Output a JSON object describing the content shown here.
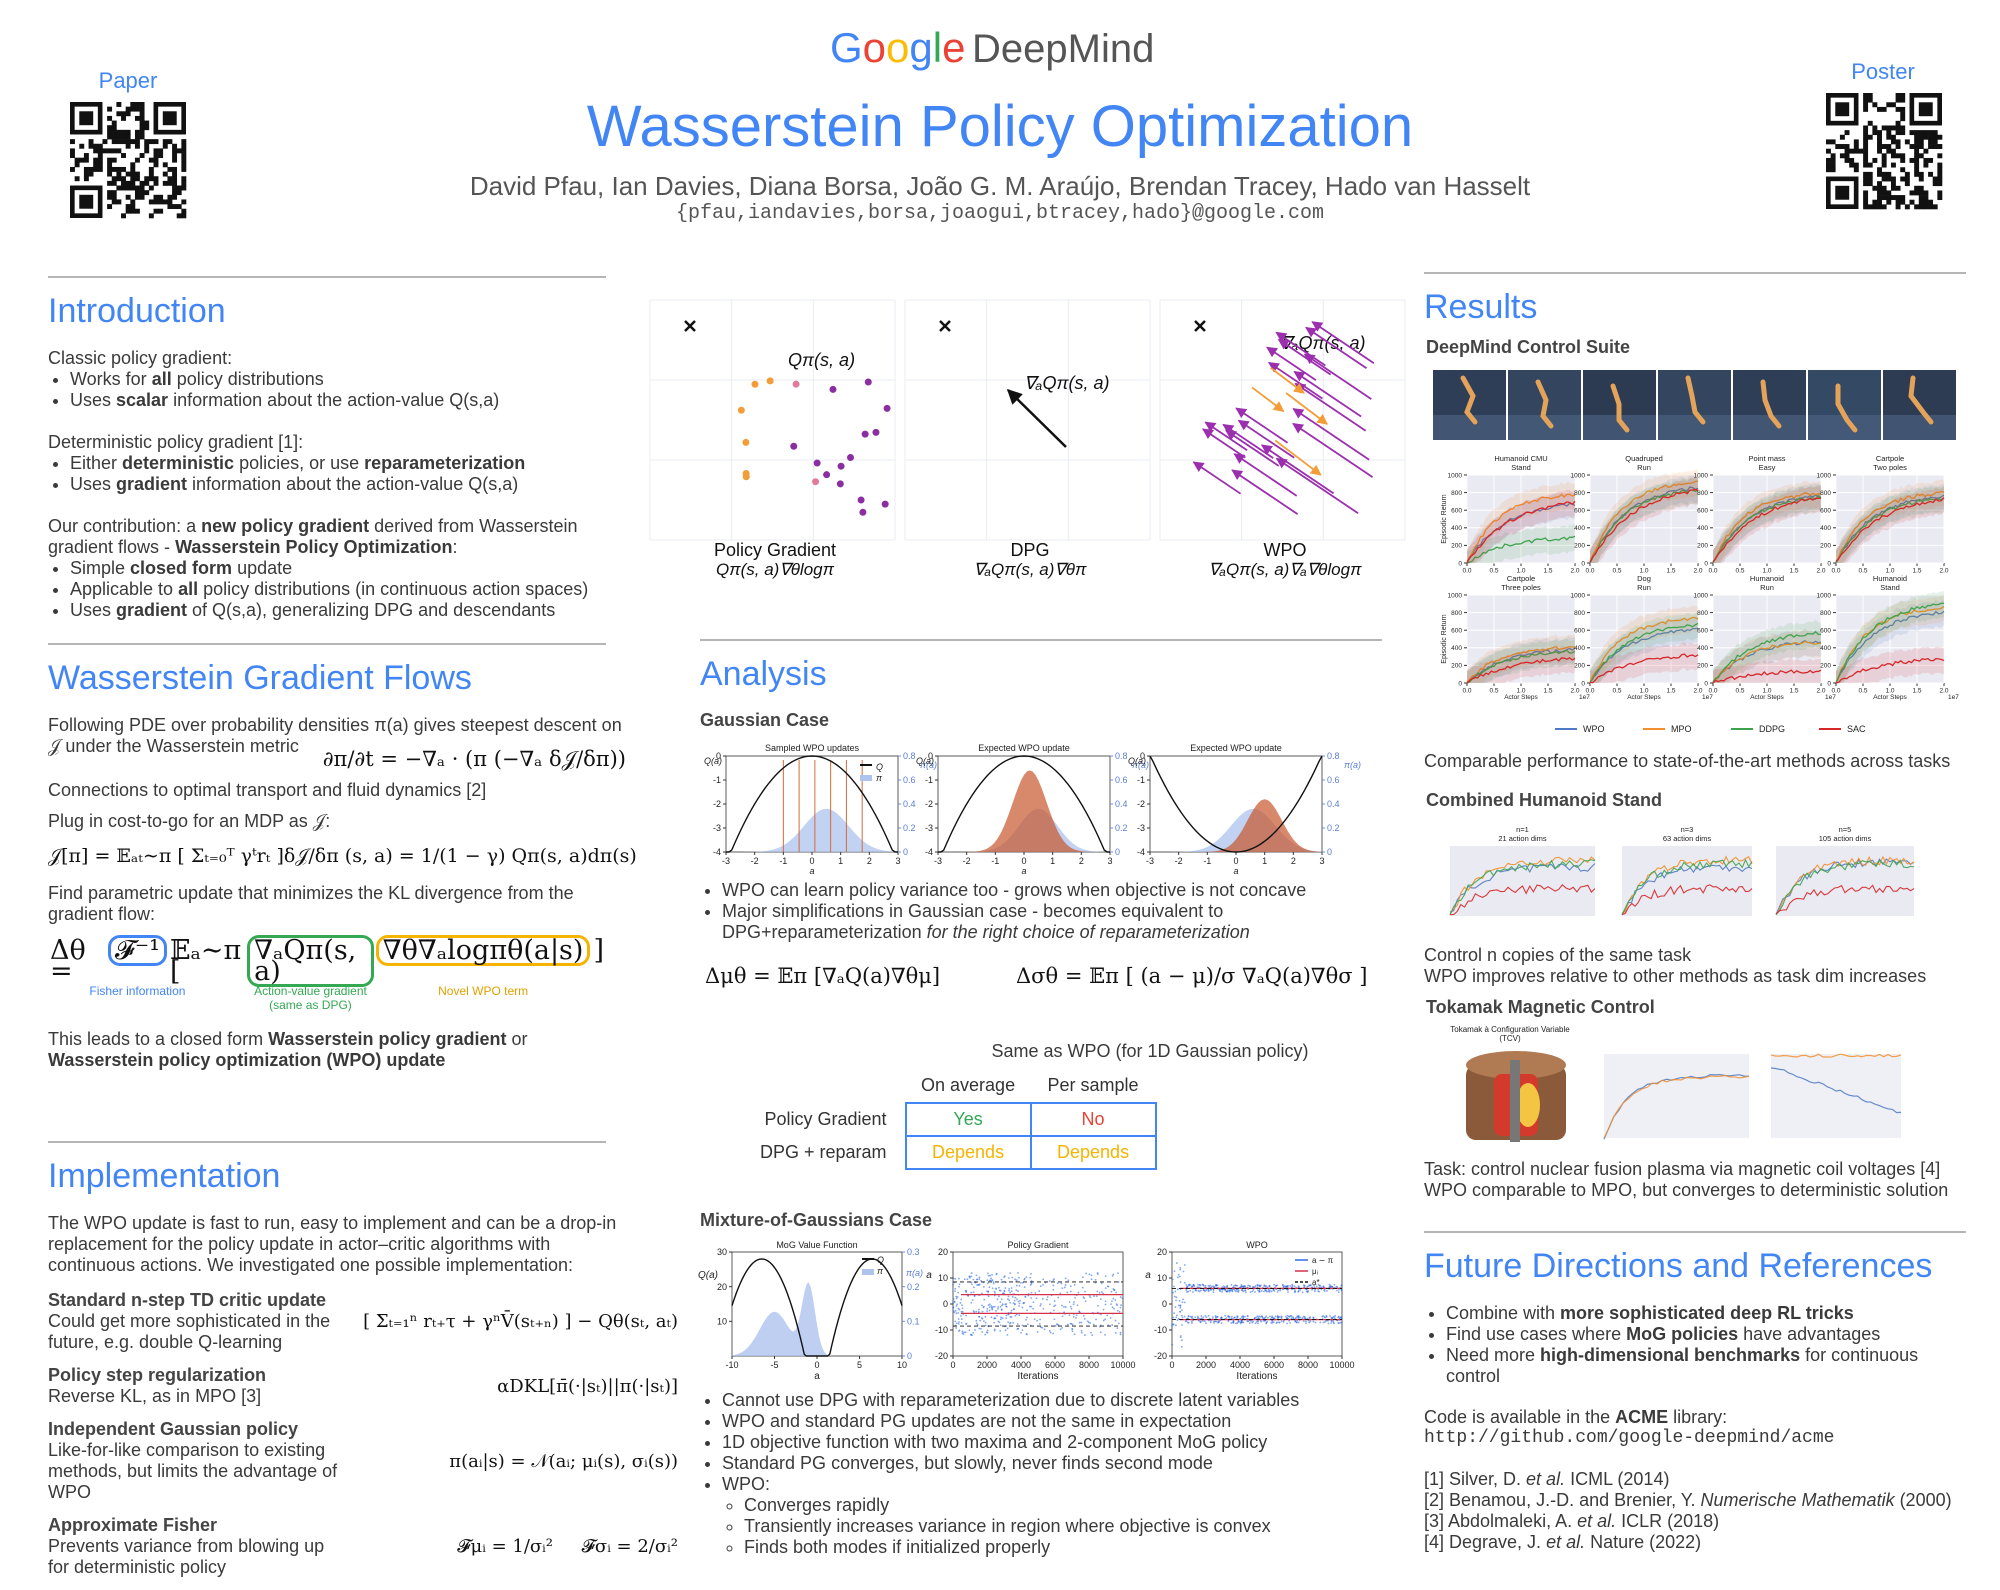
{
  "header": {
    "google": "Google",
    "deepmind": "DeepMind",
    "title": "Wasserstein Policy Optimization",
    "authors": "David Pfau, Ian Davies, Diana Borsa, João G. M. Araújo, Brendan Tracey, Hado van Hasselt",
    "emails": "{pfau,iandavies,borsa,joaogui,btracey,hado}@google.com",
    "paper": "Paper",
    "poster": "Poster"
  },
  "introduction": {
    "heading": "Introduction",
    "blocks": [
      {
        "lead": "Classic policy gradient:",
        "items": [
          [
            "Works for ",
            "all",
            " policy distributions"
          ],
          [
            "Uses ",
            "scalar",
            " information about the action-value Q(s,a)"
          ]
        ]
      },
      {
        "lead": "Deterministic policy gradient [1]:",
        "items": [
          [
            "Either ",
            "deterministic",
            " policies, or use ",
            "reparameterization"
          ],
          [
            "Uses ",
            "gradient",
            " information about the action-value Q(s,a)"
          ]
        ]
      },
      {
        "lead": [
          "Our contribution: a ",
          "new policy gradient",
          " derived from Wasserstein gradient flows - ",
          "Wasserstein Policy Optimization",
          ":"
        ],
        "items": [
          [
            "Simple ",
            "closed form",
            " update"
          ],
          [
            "Applicable to ",
            "all",
            " policy distributions (in continuous action spaces)"
          ],
          [
            "Uses ",
            "gradient",
            " of Q(s,a), generalizing DPG and descendants"
          ]
        ]
      }
    ]
  },
  "gradient_flows": {
    "heading": "Wasserstein Gradient Flows",
    "pde_text": "Following PDE over probability densities π(a) gives steepest descent on 𝒥 under the Wasserstein metric",
    "pde": "∂π/∂t = −∇ₐ · (π (−∇ₐ δ𝒥/δπ))",
    "connections": "Connections to optimal transport and fluid dynamics [2]",
    "plug": "Plug in cost-to-go for an MDP as 𝒥:",
    "eq_cost": "𝒥[π] = 𝔼ₐₜ∼π [ Σₜ₌₀ᵀ γᵗrₜ ]",
    "eq_deriv": "δ𝒥/δπ (s, a) = 1/(1 − γ) Qπ(s, a)dπ(s)",
    "kl_text": "Find parametric update that minimizes the KL divergence from the gradient flow:",
    "update": {
      "lhs": "Δθ =",
      "fisher": "𝓕⁻¹",
      "expect": "𝔼ₐ∼π [",
      "qgrad": "∇ₐQπ(s, a)",
      "novel": "∇θ∇ₐlogπθ(a|s)",
      "close": "]",
      "fisher_caption": "Fisher information",
      "qgrad_caption": [
        "Action-value gradient",
        "(same as DPG)"
      ],
      "novel_caption": "Novel WPO term"
    },
    "closing": [
      "This leads to a closed form ",
      "Wasserstein policy gradient",
      " or ",
      "Wasserstein policy optimization (WPO) update"
    ]
  },
  "implementation": {
    "heading": "Implementation",
    "text": "The WPO update is fast to run, easy to implement and can be a drop-in replacement for the policy update in actor–critic algorithms with continuous actions. We investigated one possible implementation:",
    "items": [
      {
        "title": "Standard n-step TD critic update",
        "desc": "Could get more sophisticated in the future, e.g. double Q-learning",
        "eq": "[ Σₜ₌₁ⁿ rₜ₊τ + γⁿV̄(sₜ₊ₙ) ] − Qθ(sₜ, aₜ)"
      },
      {
        "title": "Policy step regularization",
        "desc": "Reverse KL, as in MPO [3]",
        "eq": "αDKL[π̄(·|sₜ)||π(·|sₜ)]"
      },
      {
        "title": "Independent Gaussian policy",
        "desc": "Like-for-like comparison to existing methods, but limits the advantage of WPO",
        "eq": "π(aᵢ|s) = 𝒩(aᵢ; μᵢ(s), σᵢ(s))"
      },
      {
        "title": "Approximate Fisher",
        "desc": "Prevents variance from blowing up for deterministic policy",
        "eq": "𝓕μᵢ = 1/σᵢ²     𝓕σᵢ = 2/σᵢ²"
      }
    ]
  },
  "overview_figure": {
    "panels": [
      {
        "label": "Policy Gradient",
        "formula": "Qπ(s, a)∇θlogπ",
        "inner": "Qπ(s, a)"
      },
      {
        "label": "DPG",
        "formula": "∇ₐQπ(s, a)∇θπ",
        "inner": "∇ₐQπ(s, a)"
      },
      {
        "label": "WPO",
        "formula": "∇ₐQπ(s, a)∇ₐ∇θlogπ",
        "inner": "∇ₐQπ(s, a)"
      }
    ]
  },
  "analysis": {
    "heading": "Analysis",
    "gaussian": {
      "heading": "Gaussian Case",
      "titles": [
        "Sampled WPO updates",
        "Expected WPO update",
        "Expected WPO update"
      ],
      "xlabel": "a",
      "ylabel": "Q(a)",
      "y2label": "π(a)",
      "xticks": [
        -3,
        -2,
        -1,
        0,
        1,
        2,
        3
      ],
      "yticks": [
        -4,
        -3,
        -2,
        -1,
        0
      ],
      "y2ticks": [
        0.0,
        0.2,
        0.4,
        0.6,
        0.8
      ],
      "legend": [
        "Q",
        "π"
      ],
      "bullets": [
        [
          "WPO can learn policy variance too - grows when objective is not concave"
        ],
        [
          "Major simplifications in Gaussian case - becomes equivalent to DPG+reparameterization ",
          "for the right choice of reparameterization"
        ]
      ],
      "eq_mu": "Δμθ = 𝔼π [∇ₐQ(a)∇θμ]",
      "eq_sigma": "Δσθ = 𝔼π [ (a − μ)/σ ∇ₐQ(a)∇θσ ]"
    },
    "table": {
      "title": "Same as WPO (for 1D Gaussian policy)",
      "columns": [
        "On average",
        "Per sample"
      ],
      "rows": [
        {
          "label": "Policy Gradient",
          "cells": [
            "Yes",
            "No"
          ]
        },
        {
          "label": "DPG + reparam",
          "cells": [
            "Depends",
            "Depends"
          ]
        }
      ],
      "cell_colors": [
        [
          "#34a853",
          "#ea4335"
        ],
        [
          "#f4b400",
          "#f4b400"
        ]
      ]
    },
    "mog": {
      "heading": "Mixture-of-Gaussians Case",
      "plots": [
        {
          "title": "MoG Value Function",
          "xlabel": "a",
          "ylabel": "Q(a)",
          "y2label": "π(a)",
          "xticks": [
            -10,
            -5,
            0,
            5,
            10
          ],
          "ylim": [
            0,
            30
          ],
          "yticks": [
            10,
            20,
            30
          ],
          "y2ticks": [
            0.0,
            0.1,
            0.2,
            0.3
          ],
          "legend": [
            "Q",
            "π"
          ]
        },
        {
          "title": "Policy Gradient",
          "xlabel": "Iterations",
          "ylabel": "a",
          "xticks": [
            0,
            2000,
            4000,
            6000,
            8000,
            10000
          ],
          "yticks": [
            -20,
            -10,
            0,
            10,
            20
          ]
        },
        {
          "title": "WPO",
          "xlabel": "Iterations",
          "ylabel": "a",
          "xticks": [
            0,
            2000,
            4000,
            6000,
            8000,
            10000
          ],
          "yticks": [
            -20,
            -10,
            0,
            10,
            20
          ],
          "legend": [
            "a ∼ π",
            "μᵢ",
            "a*"
          ]
        }
      ],
      "bullets": [
        [
          "Cannot use DPG with reparameterization due to discrete latent variables"
        ],
        [
          "WPO and standard PG updates are not the same in expectation"
        ],
        [
          "1D objective function with two maxima and 2-component MoG policy"
        ],
        [
          "Standard PG converges, but slowly, never finds second mode"
        ],
        [
          "WPO:"
        ]
      ],
      "sub_bullets": [
        [
          "Converges rapidly"
        ],
        [
          "Transiently increases variance in region where objective is convex"
        ],
        [
          "Finds both modes if initialized properly"
        ]
      ]
    }
  },
  "results": {
    "heading": "Results",
    "dmcs": {
      "heading": "DeepMind Control Suite",
      "titles": [
        [
          "Humanoid CMU",
          "Stand"
        ],
        [
          "Quadruped",
          "Run"
        ],
        [
          "Point mass",
          "Easy"
        ],
        [
          "Cartpole",
          "Two poles"
        ],
        [
          "Cartpole",
          "Three poles"
        ],
        [
          "Dog",
          "Run"
        ],
        [
          "Humanoid",
          "Run"
        ],
        [
          "Humanoid",
          "Stand"
        ]
      ],
      "ylabel": "Episodic Return",
      "xlabel": "Actor Steps",
      "yticks": [
        0,
        200,
        400,
        600,
        800,
        1000
      ],
      "xticks": [
        {
          "value": 0,
          "label": "0.0"
        },
        {
          "value": 0.5,
          "label": "0.5"
        },
        {
          "value": 1,
          "label": "1.0"
        },
        {
          "value": 1.5,
          "label": "1.5"
        },
        {
          "value": 2,
          "label": "2.0"
        }
      ],
      "x_exponent": "1e7",
      "series": [
        {
          "name": "WPO",
          "color": "#4e79c4"
        },
        {
          "name": "MPO",
          "color": "#f28e2b"
        },
        {
          "name": "DDPG",
          "color": "#3fa34d"
        },
        {
          "name": "SAC",
          "color": "#d62728"
        }
      ],
      "caption": "Comparable performance to state-of-the-art methods across tasks"
    },
    "combined": {
      "heading": "Combined Humanoid Stand",
      "titles": [
        [
          "n=1",
          "21 action dims"
        ],
        [
          "n=3",
          "63 action dims"
        ],
        [
          "n=5",
          "105 action dims"
        ]
      ],
      "captions": [
        "Control n copies of the same task",
        "WPO improves relative to other methods as task dim increases"
      ]
    },
    "tokamak": {
      "heading": "Tokamak Magnetic Control",
      "diagram_label": [
        "Tokamak à Configuration Variable",
        "(TCV)"
      ],
      "captions": [
        "Task: control nuclear fusion plasma via magnetic coil voltages [4]",
        "WPO comparable to MPO, but converges to deterministic solution"
      ]
    }
  },
  "future": {
    "heading": "Future Directions and References",
    "bullets": [
      [
        "Combine with ",
        "more sophisticated deep RL tricks"
      ],
      [
        "Find use cases where ",
        "MoG policies",
        " have advantages"
      ],
      [
        "Need more ",
        "high-dimensional benchmarks",
        " for continuous control"
      ]
    ],
    "code_text": [
      "Code is available in the ",
      "ACME",
      " library:"
    ],
    "url": "http://github.com/google-deepmind/acme",
    "references": [
      [
        "[1] Silver, D. ",
        "et al.",
        " ICML (2014)"
      ],
      [
        "[2] Benamou, J.-D. and Brenier, Y. ",
        "Numerische Mathematik",
        " (2000)"
      ],
      [
        "[3] Abdolmaleki, A. ",
        "et al.",
        " ICLR (2018)"
      ],
      [
        "[4] Degrave, J. ",
        "et al.",
        " Nature (2022)"
      ]
    ]
  }
}
